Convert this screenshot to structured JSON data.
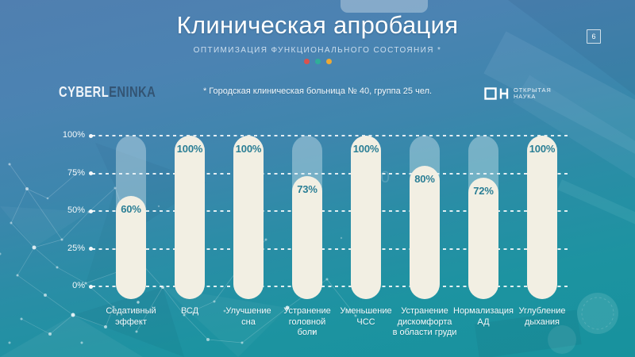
{
  "slide": {
    "title": "Клиническая апробация",
    "subtitle": "ОПТИМИЗАЦИЯ ФУНКЦИОНАЛЬНОГО СОСТОЯНИЯ *",
    "note": "* Городская клиническая больница № 40, группа 25 чел.",
    "page_number": "6",
    "accent_dot_colors": [
      "#d9524e",
      "#2fae99",
      "#eda935"
    ]
  },
  "watermark": {
    "light_part": "CYBERL",
    "dark_part": "ENINKA"
  },
  "open_science": {
    "line1": "ОТКРЫТАЯ",
    "line2": "НАУКА"
  },
  "background_ghost": {
    "text_a": "100",
    "text_b": "8"
  },
  "chart_data": {
    "type": "bar",
    "title": "Клиническая апробация — оптимизация функционального состояния",
    "categories": [
      "Седативный\nэффект",
      "ВСД",
      "Улучшение\nсна",
      "Устранение\nголовной\nболи",
      "Уменьшение\nЧСС",
      "Устранение\nдискомфорта\nв области груди",
      "Нормализация\nАД",
      "Углубление\nдыхания"
    ],
    "values": [
      60,
      100,
      100,
      73,
      100,
      80,
      72,
      100
    ],
    "value_labels": [
      "60%",
      "100%",
      "100%",
      "73%",
      "100%",
      "80%",
      "72%",
      "100%"
    ],
    "y_ticks": [
      "100%",
      "75%",
      "50%",
      "25%",
      "0%"
    ],
    "ylim": [
      0,
      100
    ],
    "xlabel": "",
    "ylabel": "",
    "grid": "horizontal-dashed",
    "legend": "none",
    "bar_color": "#f2efe3",
    "track_color": "rgba(228,242,247,0.38)",
    "value_label_color": "#2a7e95"
  }
}
